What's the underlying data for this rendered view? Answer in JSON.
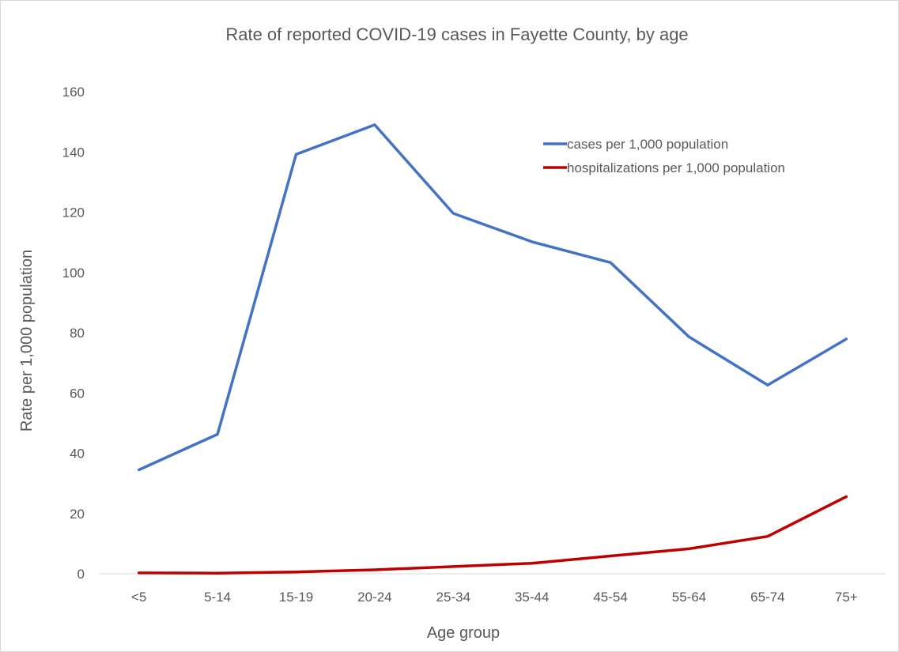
{
  "chart_data": {
    "type": "line",
    "title": "Rate of reported COVID-19 cases in Fayette County, by age",
    "xlabel": "Age group",
    "ylabel": "Rate per 1,000 population",
    "ylim": [
      0,
      160
    ],
    "yticks": [
      0,
      20,
      40,
      60,
      80,
      100,
      120,
      140,
      160
    ],
    "grid": false,
    "legend_position": "top-right",
    "categories": [
      "<5",
      "5-14",
      "15-19",
      "20-24",
      "25-34",
      "35-44",
      "45-54",
      "55-64",
      "65-74",
      "75+"
    ],
    "series": [
      {
        "name": "cases per 1,000 population",
        "color": "#4472c4",
        "values": [
          34.5,
          46.3,
          139.2,
          149.0,
          119.6,
          110.2,
          103.3,
          78.6,
          62.6,
          77.9
        ]
      },
      {
        "name": "hospitalizations per 1,000 population",
        "color": "#c00000",
        "values": [
          0.3,
          0.2,
          0.6,
          1.3,
          2.4,
          3.5,
          5.9,
          8.3,
          12.4,
          25.6
        ]
      }
    ]
  }
}
